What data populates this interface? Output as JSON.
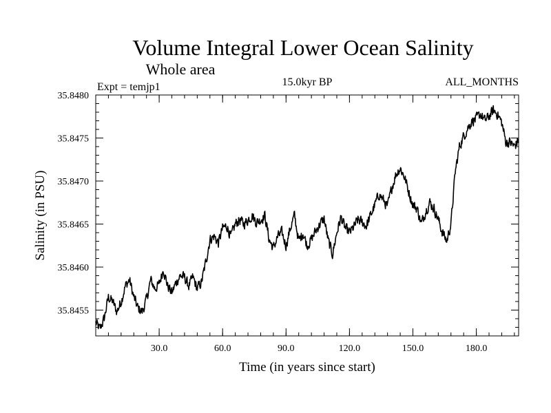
{
  "chart_data": {
    "type": "line",
    "title": "Volume Integral Lower Ocean Salinity",
    "subtitle": "Whole area",
    "annotations": {
      "left": "Expt = temjp1",
      "center": "15.0kyr BP",
      "right": "ALL_MONTHS"
    },
    "xlabel": "Time (in years since start)",
    "ylabel": "Salinity (in PSU)",
    "xlim": [
      0,
      200
    ],
    "ylim": [
      35.8452,
      35.848
    ],
    "xticks": [
      {
        "value": 30,
        "label": "30.0"
      },
      {
        "value": 60,
        "label": "60.0"
      },
      {
        "value": 90,
        "label": "90.0"
      },
      {
        "value": 120,
        "label": "120.0"
      },
      {
        "value": 150,
        "label": "150.0"
      },
      {
        "value": 180,
        "label": "180.0"
      }
    ],
    "yticks": [
      {
        "value": 35.8455,
        "label": "35.8455"
      },
      {
        "value": 35.846,
        "label": "35.8460"
      },
      {
        "value": 35.8465,
        "label": "35.8465"
      },
      {
        "value": 35.847,
        "label": "35.8470"
      },
      {
        "value": 35.8475,
        "label": "35.8475"
      },
      {
        "value": 35.848,
        "label": "35.8480"
      }
    ],
    "x_minor_step": 6,
    "y_minor_step": 0.0001,
    "grid": false,
    "series": [
      {
        "name": "Salinity",
        "color": "#000000",
        "x": [
          0,
          2,
          4,
          6,
          8,
          10,
          12,
          14,
          16,
          18,
          20,
          22,
          24,
          26,
          28,
          30,
          32,
          34,
          36,
          38,
          40,
          42,
          44,
          46,
          48,
          50,
          52,
          54,
          56,
          58,
          60,
          62,
          64,
          66,
          68,
          70,
          72,
          74,
          76,
          78,
          80,
          82,
          84,
          86,
          88,
          90,
          92,
          94,
          96,
          98,
          100,
          102,
          104,
          106,
          108,
          110,
          112,
          114,
          116,
          118,
          120,
          122,
          124,
          126,
          128,
          130,
          132,
          134,
          136,
          138,
          140,
          142,
          144,
          146,
          148,
          150,
          152,
          154,
          156,
          158,
          160,
          162,
          164,
          166,
          168,
          170,
          172,
          174,
          176,
          178,
          180,
          182,
          184,
          186,
          188,
          190,
          192,
          194,
          196,
          198,
          200
        ],
        "values": [
          35.84535,
          35.84528,
          35.8454,
          35.84565,
          35.8456,
          35.84548,
          35.8456,
          35.84578,
          35.84585,
          35.84565,
          35.84552,
          35.84548,
          35.84562,
          35.84585,
          35.84575,
          35.8458,
          35.84598,
          35.84578,
          35.8457,
          35.84582,
          35.8459,
          35.84588,
          35.84578,
          35.84588,
          35.84575,
          35.84582,
          35.84605,
          35.84632,
          35.84636,
          35.84628,
          35.84645,
          35.84648,
          35.84635,
          35.8465,
          35.84655,
          35.8465,
          35.84655,
          35.8466,
          35.84652,
          35.84655,
          35.8466,
          35.84632,
          35.84622,
          35.84635,
          35.8464,
          35.84625,
          35.84645,
          35.8466,
          35.8463,
          35.8464,
          35.84625,
          35.84632,
          35.84642,
          35.8465,
          35.84656,
          35.8463,
          35.84615,
          35.8464,
          35.84658,
          35.84645,
          35.8464,
          35.84646,
          35.84655,
          35.84652,
          35.84648,
          35.8466,
          35.84672,
          35.84685,
          35.84678,
          35.8467,
          35.84692,
          35.84708,
          35.84715,
          35.84705,
          35.84688,
          35.84672,
          35.84668,
          35.8465,
          35.84665,
          35.84675,
          35.84668,
          35.84655,
          35.8464,
          35.8463,
          35.8465,
          35.8471,
          35.8474,
          35.84752,
          35.84762,
          35.8477,
          35.84772,
          35.84778,
          35.8477,
          35.84775,
          35.84782,
          35.84778,
          35.84768,
          35.84745,
          35.84745,
          35.8474,
          35.84748
        ]
      }
    ]
  }
}
